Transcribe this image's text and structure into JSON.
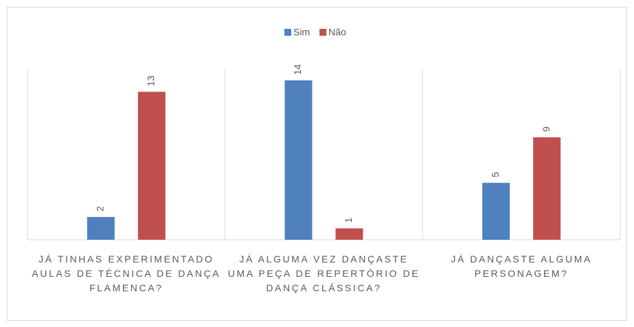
{
  "chart_data": {
    "type": "bar",
    "categories": [
      "JÁ TINHAS EXPERIMENTADO AULAS DE TÉCNICA DE DANÇA FLAMENCA?",
      "JÁ ALGUMA VEZ DANÇASTE UMA PEÇA DE REPERTÓRIO DE DANÇA CLÁSSICA?",
      "JÁ DANÇASTE ALGUMA PERSONAGEM?"
    ],
    "series": [
      {
        "name": "Sim",
        "color": "#4f81bd",
        "values": [
          2,
          14,
          5
        ]
      },
      {
        "name": "Não",
        "color": "#c0504d",
        "values": [
          13,
          1,
          9
        ]
      }
    ],
    "legend": "top"
  }
}
